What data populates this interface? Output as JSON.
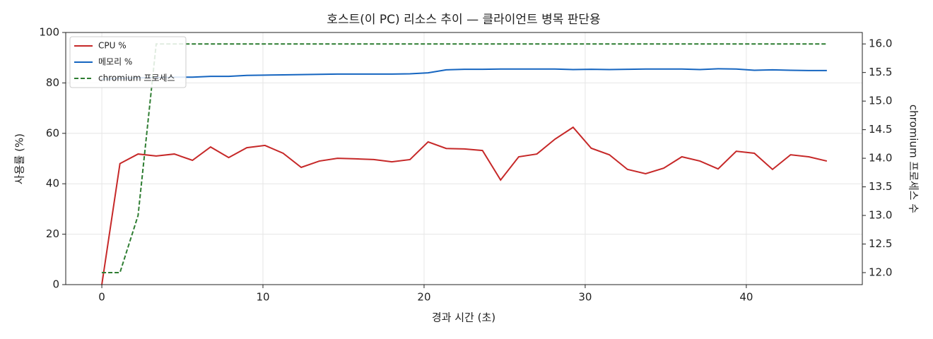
{
  "chart_data": {
    "type": "line",
    "title": "호스트(이 PC) 리소스 추이 — 클라이언트 병목 판단용",
    "xlabel": "경과 시간 (초)",
    "ylabel": "사용률 (%)",
    "y2label": "chromium 프로세스 수",
    "x": [
      0,
      1.125,
      2.25,
      3.375,
      4.5,
      5.625,
      6.75,
      7.875,
      9,
      10.125,
      11.25,
      12.375,
      13.5,
      14.625,
      15.75,
      16.875,
      18,
      19.125,
      20.25,
      21.375,
      22.5,
      23.625,
      24.75,
      25.875,
      27,
      28.125,
      29.25,
      30.375,
      31.5,
      32.625,
      33.75,
      34.875,
      36,
      37.125,
      38.25,
      39.375,
      40.5,
      41.625,
      42.75,
      43.875,
      45
    ],
    "series": [
      {
        "name": "CPU %",
        "color": "#c62828",
        "values": [
          0,
          48,
          51.8,
          51,
          51.8,
          49.3,
          54.6,
          50.4,
          54.3,
          55.2,
          52.1,
          46.5,
          49,
          50.1,
          49.9,
          49.6,
          48.7,
          49.6,
          56.6,
          54,
          53.8,
          53.2,
          41.5,
          50.7,
          51.8,
          57.7,
          62.4,
          54.1,
          51.5,
          45.7,
          44,
          46.2,
          50.7,
          49,
          45.9,
          52.9,
          52.1,
          45.7,
          51.5,
          50.7,
          49
        ]
      },
      {
        "name": "메모리 %",
        "color": "#1565c0",
        "values": [
          81.5,
          81.8,
          82,
          82.1,
          82.3,
          82.3,
          82.6,
          82.6,
          83,
          83.1,
          83.2,
          83.3,
          83.4,
          83.5,
          83.5,
          83.5,
          83.5,
          83.6,
          84,
          85.2,
          85.4,
          85.4,
          85.5,
          85.5,
          85.5,
          85.5,
          85.3,
          85.4,
          85.3,
          85.4,
          85.5,
          85.5,
          85.5,
          85.3,
          85.6,
          85.5,
          85,
          85.2,
          85,
          84.9,
          84.9
        ]
      },
      {
        "name": "chromium 프로세스",
        "color": "#2e7d32",
        "dashed": true,
        "axis": "y2",
        "values": [
          12,
          12,
          13,
          16,
          16,
          16,
          16,
          16,
          16,
          16,
          16,
          16,
          16,
          16,
          16,
          16,
          16,
          16,
          16,
          16,
          16,
          16,
          16,
          16,
          16,
          16,
          16,
          16,
          16,
          16,
          16,
          16,
          16,
          16,
          16,
          16,
          16,
          16,
          16,
          16,
          16
        ]
      }
    ],
    "xlim": [
      -2.24,
      47.2
    ],
    "xticks": [
      0,
      10,
      20,
      30,
      40
    ],
    "ylim": [
      0,
      100
    ],
    "yticks": [
      0,
      20,
      40,
      60,
      80,
      100
    ],
    "y2lim": [
      11.79,
      16.2
    ],
    "y2ticks": [
      {
        "value": 12,
        "label": "12.0"
      },
      12.5,
      {
        "value": 13,
        "label": "13.0"
      },
      13.5,
      {
        "value": 14,
        "label": "14.0"
      },
      14.5,
      {
        "value": 15,
        "label": "15.0"
      },
      15.5,
      {
        "value": 16,
        "label": "16.0"
      }
    ],
    "grid": true,
    "legend": "upper-left"
  }
}
